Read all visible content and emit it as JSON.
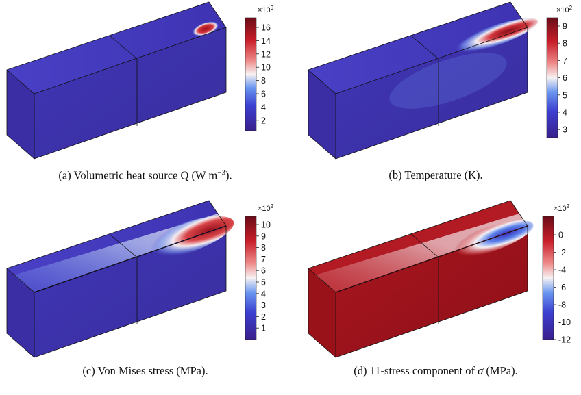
{
  "panels": [
    {
      "id": "a",
      "caption": {
        "prefix": "(a) Volumetric heat source Q (W m",
        "sup": "−3",
        "suffix": ")."
      },
      "colorbar": {
        "multiplier": "×10",
        "multiplier_exp": "9",
        "ticks": [
          "16",
          "14",
          "12",
          "10",
          "8",
          "6",
          "4",
          "2"
        ],
        "scale": "blue-white-red"
      }
    },
    {
      "id": "b",
      "caption": {
        "prefix": "(b) Temperature (K).",
        "sup": "",
        "suffix": ""
      },
      "colorbar": {
        "multiplier": "×10",
        "multiplier_exp": "2",
        "ticks": [
          "9",
          "8",
          "7",
          "6",
          "5",
          "4",
          "3"
        ],
        "scale": "blue-white-red"
      }
    },
    {
      "id": "c",
      "caption": {
        "prefix": "(c) Von Mises stress (MPa).",
        "sup": "",
        "suffix": ""
      },
      "colorbar": {
        "multiplier": "×10",
        "multiplier_exp": "2",
        "ticks": [
          "10",
          "9",
          "8",
          "7",
          "6",
          "5",
          "4",
          "3",
          "2",
          "1"
        ],
        "scale": "blue-white-red"
      }
    },
    {
      "id": "d",
      "caption": {
        "prefix": "(d) 11-stress component of ",
        "sigma": "σ",
        "suffix": " (MPa)."
      },
      "colorbar": {
        "multiplier": "×10",
        "multiplier_exp": "2",
        "ticks": [
          "0",
          "-2",
          "-4",
          "-6",
          "-8",
          "-10",
          "-12"
        ],
        "scale": "blue-white-red"
      }
    }
  ],
  "colors": {
    "low": "#3a1f8c",
    "mid_low": "#4a6ee6",
    "mid": "#f4f0f0",
    "mid_high": "#d43a3a",
    "high": "#6e0d1a"
  }
}
